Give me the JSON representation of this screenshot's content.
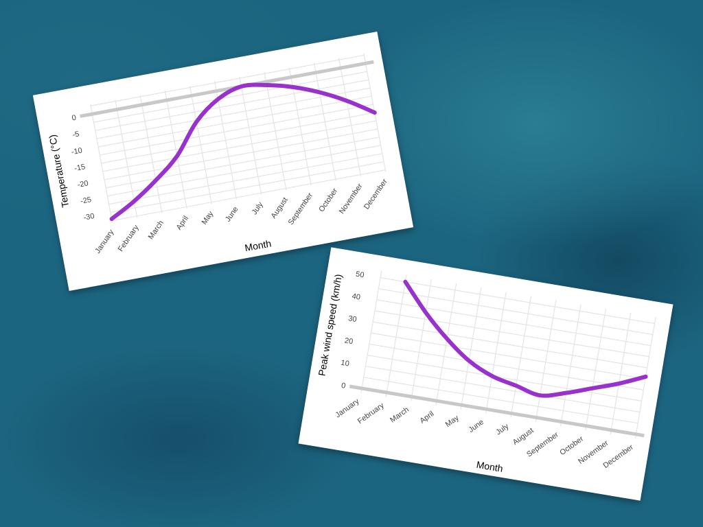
{
  "colors": {
    "series": "#9932cc",
    "grid": "#e4e4e4",
    "zero_line": "#c8c8c8"
  },
  "chart_data": [
    {
      "type": "line",
      "xlabel": "Month",
      "ylabel": "Temperature (°C)",
      "categories": [
        "January",
        "February",
        "March",
        "April",
        "May",
        "June",
        "July",
        "August",
        "September",
        "October",
        "November",
        "December"
      ],
      "series": [
        {
          "values": [
            -32,
            -28,
            -23,
            -17,
            -8,
            -2.5,
            0,
            -1,
            -3,
            -6,
            -10,
            -15
          ]
        }
      ],
      "yticks": [
        0,
        -5,
        -10,
        -15,
        -20,
        -25,
        -30
      ],
      "ylim": [
        -33,
        3
      ],
      "grid": true,
      "legend": "none"
    },
    {
      "type": "line",
      "xlabel": "Month",
      "ylabel": "Peak wind speed (km/h)",
      "categories": [
        "January",
        "February",
        "March",
        "April",
        "May",
        "June",
        "July",
        "August",
        "September",
        "October",
        "November",
        "December"
      ],
      "series": [
        {
          "values": [
            null,
            50,
            38,
            28,
            20,
            15,
            12.5,
            10,
            13,
            17,
            21,
            26
          ]
        }
      ],
      "yticks": [
        0,
        10,
        20,
        30,
        40,
        50
      ],
      "ylim": [
        -2,
        53
      ],
      "grid": true,
      "legend": "none"
    }
  ]
}
